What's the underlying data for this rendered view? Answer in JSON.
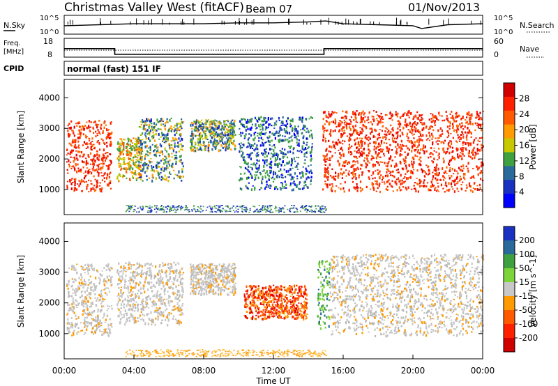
{
  "header": {
    "station": "Christmas Valley West (fitACF)",
    "beam": "Beam 07",
    "date": "01/Nov/2013"
  },
  "noise_panel": {
    "left_label": "N.Sky",
    "right_label": "N.Search",
    "ticks_left": [
      "10^5",
      "10^0"
    ],
    "ticks_right": [
      "10^5",
      "10^0"
    ]
  },
  "freq_panel": {
    "left_label_line1": "Freq.",
    "left_label_line2": "[MHz]",
    "right_label": "Nave",
    "ticks_left": [
      "18",
      "8"
    ],
    "ticks_right": [
      "60",
      "0"
    ]
  },
  "cpid": {
    "label": "CPID",
    "value": "normal (fast) 151 IF"
  },
  "chart_data": [
    {
      "type": "line",
      "panel": "noise",
      "x_range_hours": [
        0,
        24
      ],
      "series": [
        {
          "name": "N.Sky",
          "x": [
            0,
            2,
            4,
            6,
            8,
            10,
            12,
            14,
            15,
            16,
            18,
            20,
            20.5,
            22,
            24
          ],
          "values": [
            0.45,
            0.5,
            0.55,
            0.55,
            0.55,
            0.6,
            0.6,
            0.65,
            0.7,
            0.55,
            0.5,
            0.45,
            0.3,
            0.5,
            0.55
          ]
        }
      ]
    },
    {
      "type": "line",
      "panel": "frequency",
      "x_range_hours": [
        0,
        24
      ],
      "ylim_mhz": [
        8,
        18
      ],
      "series": [
        {
          "name": "Freq",
          "x": [
            0,
            2.9,
            2.9,
            14.9,
            14.9,
            24
          ],
          "values": [
            12.5,
            12.5,
            9.5,
            9.5,
            12.5,
            12.5
          ]
        }
      ]
    },
    {
      "type": "heatmap",
      "title": "Power",
      "xlabel": "Time UT",
      "ylabel": "Slant Range [km]",
      "x_ticks": [
        "00:00",
        "04:00",
        "08:00",
        "12:00",
        "16:00",
        "20:00",
        "00:00"
      ],
      "y_ticks": [
        "1000",
        "2000",
        "3000",
        "4000"
      ],
      "ylim_km": [
        180,
        4600
      ],
      "colorbar": {
        "label": "Power [dB]",
        "ticks": [
          "28",
          "24",
          "20",
          "16",
          "12",
          "8",
          "4"
        ],
        "colors": [
          "#d00000",
          "#ff2000",
          "#ff5a00",
          "#ff9a00",
          "#c8c800",
          "#3fa040",
          "#2a6a9a",
          "#1a30c0",
          "#0000ff"
        ]
      },
      "features": [
        {
          "t": [
            0.1,
            2.7
          ],
          "r": [
            950,
            3300
          ],
          "level": "high"
        },
        {
          "t": [
            3.0,
            4.4
          ],
          "r": [
            1300,
            2700
          ],
          "level": "mixed"
        },
        {
          "t": [
            4.2,
            6.8
          ],
          "r": [
            1300,
            3350
          ],
          "level": "mid"
        },
        {
          "t": [
            7.2,
            9.8
          ],
          "r": [
            2300,
            3300
          ],
          "level": "mid"
        },
        {
          "t": [
            10.0,
            14.2
          ],
          "r": [
            1000,
            3400
          ],
          "level": "low"
        },
        {
          "t": [
            14.8,
            24
          ],
          "r": [
            950,
            3600
          ],
          "level": "high"
        }
      ]
    },
    {
      "type": "heatmap",
      "title": "Velocity",
      "xlabel": "Time UT",
      "ylabel": "Slant Range [km]",
      "x_ticks": [
        "00:00",
        "04:00",
        "08:00",
        "12:00",
        "16:00",
        "20:00",
        "00:00"
      ],
      "y_ticks": [
        "1000",
        "2000",
        "3000",
        "4000"
      ],
      "ylim_km": [
        180,
        4600
      ],
      "colorbar": {
        "label": "Velocity [m s^-1]",
        "ticks": [
          "200",
          "100",
          "50",
          "15",
          "-15",
          "-50",
          "-100",
          "-200"
        ],
        "colors": [
          "#1a30c0",
          "#2a6a9a",
          "#3fa040",
          "#7cd33a",
          "#c8c8c8",
          "#ff9a00",
          "#ff5a00",
          "#ff2000",
          "#d00000"
        ]
      },
      "features": [
        {
          "t": [
            0.1,
            2.7
          ],
          "r": [
            950,
            3300
          ],
          "level": "ground"
        },
        {
          "t": [
            3.0,
            6.8
          ],
          "r": [
            1300,
            3350
          ],
          "level": "ground"
        },
        {
          "t": [
            7.2,
            9.8
          ],
          "r": [
            2300,
            3300
          ],
          "level": "ground"
        },
        {
          "t": [
            10.3,
            13.9
          ],
          "r": [
            1500,
            2600
          ],
          "level": "negative"
        },
        {
          "t": [
            14.5,
            15.2
          ],
          "r": [
            1200,
            3400
          ],
          "level": "positive"
        },
        {
          "t": [
            15.2,
            24
          ],
          "r": [
            950,
            3600
          ],
          "level": "ground"
        }
      ]
    }
  ]
}
